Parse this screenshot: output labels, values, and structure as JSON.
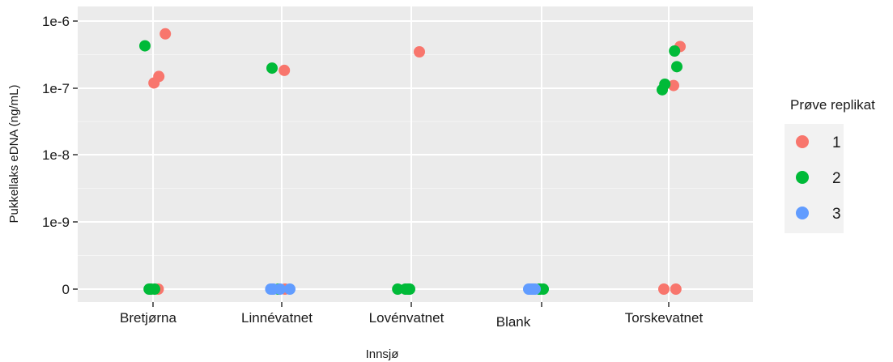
{
  "chart_data": {
    "type": "scatter",
    "xlabel": "Innsjø",
    "ylabel": "Pukkellaks eDNA (ng/mL)",
    "categories": [
      "Bretjørna",
      "Linnévatnet",
      "Lovénvatnet",
      "Blank",
      "Torskevatnet"
    ],
    "y_scale": "log10 with zero",
    "y_ticks": [
      "0",
      "1e-9",
      "1e-8",
      "1e-7",
      "1e-6"
    ],
    "grid": true,
    "legend": {
      "title": "Prøve replikat",
      "position": "right",
      "entries": [
        {
          "label": "1",
          "color": "#F8766D"
        },
        {
          "label": "2",
          "color": "#00BA38"
        },
        {
          "label": "3",
          "color": "#619CFF"
        }
      ]
    },
    "series": [
      {
        "replicate": "1",
        "color": "#F8766D",
        "points": [
          {
            "category": "Bretjørna",
            "jitter": 0.38,
            "y": 6.5e-07
          },
          {
            "category": "Bretjørna",
            "jitter": 0.18,
            "y": 1.5e-07
          },
          {
            "category": "Bretjørna",
            "jitter": 0.03,
            "y": 1.2e-07
          },
          {
            "category": "Bretjørna",
            "jitter": 0.16,
            "y": 0
          },
          {
            "category": "Linnévatnet",
            "jitter": 0.08,
            "y": 1.85e-07
          },
          {
            "category": "Linnévatnet",
            "jitter": -0.28,
            "y": 0
          },
          {
            "category": "Linnévatnet",
            "jitter": 0.1,
            "y": 0
          },
          {
            "category": "Lovénvatnet",
            "jitter": 0.25,
            "y": 3.5e-07
          },
          {
            "category": "Torskevatnet",
            "jitter": 0.35,
            "y": 4.2e-07
          },
          {
            "category": "Torskevatnet",
            "jitter": 0.15,
            "y": 1.1e-07
          },
          {
            "category": "Torskevatnet",
            "jitter": -0.15,
            "y": 0
          },
          {
            "category": "Torskevatnet",
            "jitter": 0.22,
            "y": 0
          }
        ]
      },
      {
        "replicate": "2",
        "color": "#00BA38",
        "points": [
          {
            "category": "Bretjørna",
            "jitter": -0.25,
            "y": 4.3e-07
          },
          {
            "category": "Bretjørna",
            "jitter": -0.12,
            "y": 0
          },
          {
            "category": "Bretjørna",
            "jitter": -0.06,
            "y": 0
          },
          {
            "category": "Bretjørna",
            "jitter": 0.05,
            "y": 0
          },
          {
            "category": "Linnévatnet",
            "jitter": -0.3,
            "y": 2e-07
          },
          {
            "category": "Linnévatnet",
            "jitter": -0.1,
            "y": 0
          },
          {
            "category": "Lovénvatnet",
            "jitter": -0.42,
            "y": 0
          },
          {
            "category": "Lovénvatnet",
            "jitter": -0.18,
            "y": 0
          },
          {
            "category": "Lovénvatnet",
            "jitter": -0.1,
            "y": 0
          },
          {
            "category": "Lovénvatnet",
            "jitter": -0.05,
            "y": 0
          },
          {
            "category": "Blank",
            "jitter": -0.08,
            "y": 0
          },
          {
            "category": "Blank",
            "jitter": -0.05,
            "y": 0
          },
          {
            "category": "Blank",
            "jitter": 0.05,
            "y": 0
          },
          {
            "category": "Torskevatnet",
            "jitter": -0.2,
            "y": 9.5e-08
          },
          {
            "category": "Torskevatnet",
            "jitter": -0.12,
            "y": 1.15e-07
          },
          {
            "category": "Torskevatnet",
            "jitter": 0.18,
            "y": 3.6e-07
          },
          {
            "category": "Torskevatnet",
            "jitter": 0.25,
            "y": 2.1e-07
          }
        ]
      },
      {
        "replicate": "3",
        "color": "#619CFF",
        "points": [
          {
            "category": "Linnévatnet",
            "jitter": -0.34,
            "y": 0
          },
          {
            "category": "Linnévatnet",
            "jitter": -0.26,
            "y": 0
          },
          {
            "category": "Linnévatnet",
            "jitter": -0.05,
            "y": 0
          },
          {
            "category": "Linnévatnet",
            "jitter": 0.25,
            "y": 0
          },
          {
            "category": "Blank",
            "jitter": -0.4,
            "y": 0
          },
          {
            "category": "Blank",
            "jitter": -0.35,
            "y": 0
          },
          {
            "category": "Blank",
            "jitter": -0.3,
            "y": 0
          },
          {
            "category": "Blank",
            "jitter": -0.25,
            "y": 0
          },
          {
            "category": "Blank",
            "jitter": -0.2,
            "y": 0
          }
        ]
      }
    ]
  }
}
